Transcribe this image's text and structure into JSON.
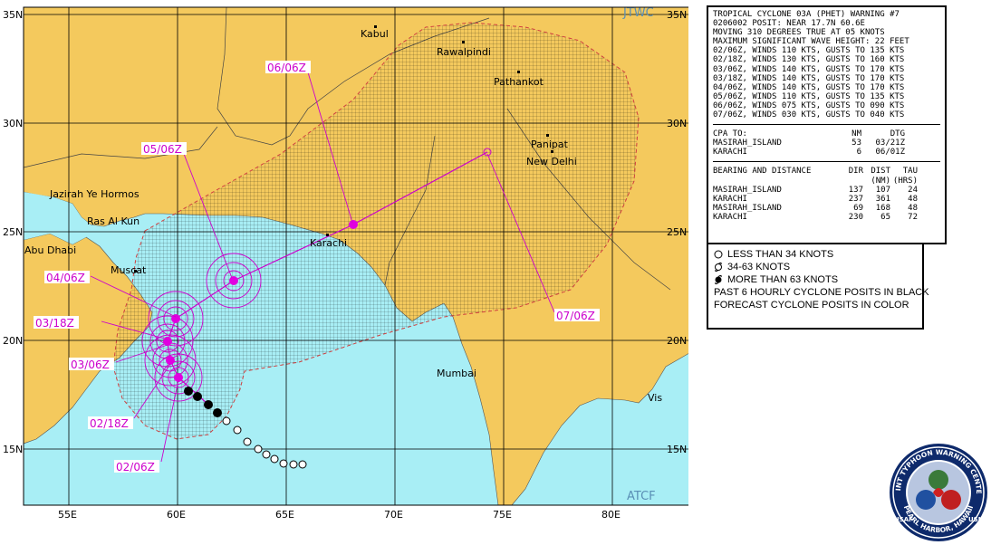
{
  "map": {
    "agency_top": "JTWC",
    "agency_bottom": "ATCF",
    "lat_labels": [
      "35N",
      "30N",
      "25N",
      "20N",
      "15N"
    ],
    "lon_labels": [
      "55E",
      "60E",
      "65E",
      "70E",
      "75E",
      "80E"
    ],
    "places": {
      "kabul": "Kabul",
      "rawalpindi": "Rawalpindi",
      "pathankot": "Pathankot",
      "panipat": "Panipat",
      "new_delhi": "New Delhi",
      "jazirah": "Jazirah Ye Hormos",
      "ras_al_kun": "Ras Al Kun",
      "abu_dhabi": "Abu Dhabi",
      "muscat": "Muscat",
      "karachi": "Karachi",
      "mumbai": "Mumbai",
      "vis": "Vis"
    },
    "forecast_labels": [
      "02/06Z",
      "02/18Z",
      "03/06Z",
      "03/18Z",
      "04/06Z",
      "05/06Z",
      "06/06Z",
      "07/06Z"
    ],
    "colors": {
      "ocean": "#a8eef5",
      "land": "#f4c95d",
      "track": "#cc00cc",
      "grid": "#000000"
    }
  },
  "warning": {
    "title": "TROPICAL CYCLONE 03A (PHET) WARNING #7",
    "posit": "0206002 POSIT: NEAR 17.7N 60.6E",
    "moving": "MOVING 310 DEGREES TRUE AT 05 KNOTS",
    "wave": "MAXIMUM SIGNIFICANT WAVE HEIGHT: 22 FEET",
    "forecasts": [
      "02/06Z, WINDS 110 KTS, GUSTS TO 135 KTS",
      "02/18Z, WINDS 130 KTS, GUSTS TO 160 KTS",
      "03/06Z, WINDS 140 KTS, GUSTS TO 170 KTS",
      "03/18Z, WINDS 140 KTS, GUSTS TO 170 KTS",
      "04/06Z, WINDS 140 KTS, GUSTS TO 170 KTS",
      "05/06Z, WINDS 110 KTS, GUSTS TO 135 KTS",
      "06/06Z, WINDS 075 KTS, GUSTS TO 090 KTS",
      "07/06Z, WINDS 030 KTS, GUSTS TO 040 KTS"
    ],
    "cpa": {
      "headers": [
        "CPA TO:",
        "NM",
        "DTG"
      ],
      "rows": [
        [
          "MASIRAH_ISLAND",
          "53",
          "03/21Z"
        ],
        [
          "KARACHI",
          "6",
          "06/01Z"
        ]
      ]
    },
    "bearing": {
      "headers": [
        "BEARING AND DISTANCE",
        "DIR",
        "DIST",
        "TAU"
      ],
      "subheaders": [
        "",
        "",
        "(NM)",
        "(HRS)"
      ],
      "rows": [
        [
          "MASIRAH_ISLAND",
          "137",
          "107",
          "24"
        ],
        [
          "KARACHI",
          "237",
          "361",
          "48"
        ],
        [
          "MASIRAH_ISLAND",
          "69",
          "168",
          "48"
        ],
        [
          "KARACHI",
          "230",
          "65",
          "72"
        ]
      ]
    }
  },
  "legend": {
    "items": [
      "LESS THAN 34 KNOTS",
      "34-63 KNOTS",
      "MORE THAN 63 KNOTS",
      "PAST 6 HOURLY CYCLONE POSITS IN BLACK",
      "FORECAST CYCLONE POSITS IN COLOR"
    ]
  },
  "seal": {
    "ring_text_top": "JOINT TYPHOON WARNING CENTER",
    "ring_text_bottom": "PEARL HARBOR, HAWAII",
    "left": "USAF",
    "right": "USN"
  }
}
